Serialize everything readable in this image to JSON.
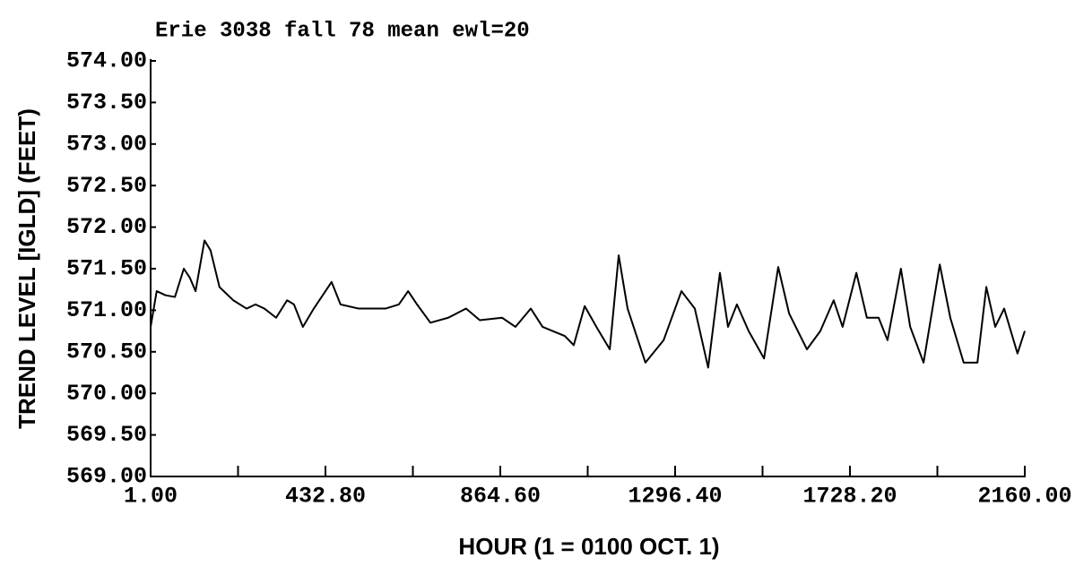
{
  "chart_data": {
    "type": "line",
    "title": "Erie 3038 fall 78 mean ewl=20",
    "x_label": "HOUR (1 = 0100 OCT. 1)",
    "y_label": "TREND LEVEL [IGLD] (FEET)",
    "xlim": [
      1,
      2160
    ],
    "ylim": [
      569,
      574
    ],
    "xticks": [
      {
        "value": 1,
        "label": "1.00"
      },
      {
        "value": 432.8,
        "label": "432.80"
      },
      {
        "value": 864.6,
        "label": "864.60"
      },
      {
        "value": 1296.4,
        "label": "1296.40"
      },
      {
        "value": 1728.2,
        "label": "1728.20"
      },
      {
        "value": 2160,
        "label": "2160.00"
      }
    ],
    "xminorticks": [
      216.9,
      648.7,
      1080.5,
      1512.3,
      1944.1
    ],
    "yticks": [
      {
        "value": 569,
        "label": "569.00"
      },
      {
        "value": 569.5,
        "label": "569.50"
      },
      {
        "value": 570,
        "label": "570.00"
      },
      {
        "value": 570.5,
        "label": "570.50"
      },
      {
        "value": 571,
        "label": "571.00"
      },
      {
        "value": 571.5,
        "label": "571.50"
      },
      {
        "value": 572,
        "label": "572.00"
      },
      {
        "value": 572.5,
        "label": "572.50"
      },
      {
        "value": 573,
        "label": "573.00"
      },
      {
        "value": 573.5,
        "label": "573.50"
      },
      {
        "value": 574,
        "label": "574.00"
      }
    ],
    "grid": false,
    "color": "#000000",
    "x": [
      1,
      16,
      38,
      61,
      83,
      98,
      112,
      134,
      149,
      171,
      205,
      238,
      260,
      282,
      311,
      338,
      355,
      377,
      404,
      448,
      470,
      515,
      581,
      614,
      637,
      659,
      692,
      736,
      780,
      814,
      869,
      902,
      940,
      969,
      1024,
      1046,
      1073,
      1102,
      1135,
      1157,
      1179,
      1223,
      1268,
      1312,
      1345,
      1378,
      1407,
      1427,
      1449,
      1478,
      1516,
      1551,
      1578,
      1622,
      1655,
      1688,
      1710,
      1744,
      1770,
      1799,
      1821,
      1854,
      1877,
      1910,
      1950,
      1976,
      2009,
      2043,
      2065,
      2087,
      2109,
      2142,
      2160
    ],
    "values": [
      570.8,
      571.23,
      571.18,
      571.16,
      571.5,
      571.39,
      571.23,
      571.84,
      571.72,
      571.28,
      571.12,
      571.02,
      571.07,
      571.02,
      570.91,
      571.12,
      571.07,
      570.8,
      571.02,
      571.34,
      571.07,
      571.02,
      571.02,
      571.07,
      571.23,
      571.07,
      570.85,
      570.91,
      571.02,
      570.88,
      570.91,
      570.8,
      571.02,
      570.8,
      570.69,
      570.58,
      571.05,
      570.8,
      570.53,
      571.66,
      571.02,
      570.37,
      570.64,
      571.23,
      571.02,
      570.31,
      571.45,
      570.8,
      571.07,
      570.75,
      570.42,
      571.52,
      570.96,
      570.53,
      570.75,
      571.12,
      570.8,
      571.45,
      570.91,
      570.91,
      570.64,
      571.5,
      570.8,
      570.37,
      571.55,
      570.91,
      570.37,
      570.37,
      571.28,
      570.8,
      571.02,
      570.48,
      570.75
    ]
  }
}
